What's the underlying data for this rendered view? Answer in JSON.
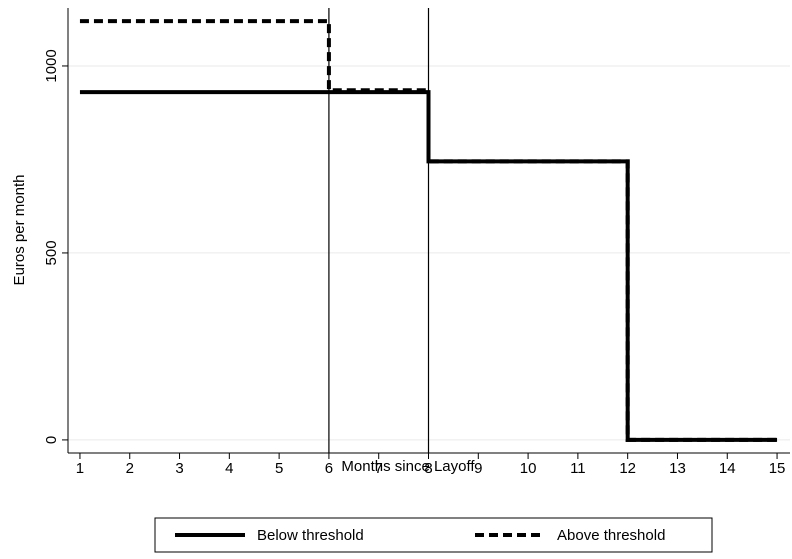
{
  "chart_data": {
    "type": "step",
    "x_label": "Months since Layoff",
    "y_label": "Euros per month",
    "x": [
      1,
      6,
      8,
      12,
      15
    ],
    "series": [
      {
        "name": "Below threshold",
        "color": "#000000",
        "dash": "solid",
        "values": [
          930,
          930,
          745,
          0,
          0
        ]
      },
      {
        "name": "Above threshold",
        "color": "#000000",
        "dash": "dashed",
        "values": [
          1120,
          935,
          745,
          0,
          0
        ]
      }
    ],
    "vlines": [
      6,
      8
    ],
    "xlim": [
      0.76,
      15.26
    ],
    "ylim": [
      -35,
      1155
    ],
    "xticks": [
      1,
      2,
      3,
      4,
      5,
      6,
      7,
      8,
      9,
      10,
      11,
      12,
      13,
      14,
      15
    ],
    "yticks": [
      0,
      500,
      1000
    ],
    "grid": true,
    "legend": "bottom"
  }
}
